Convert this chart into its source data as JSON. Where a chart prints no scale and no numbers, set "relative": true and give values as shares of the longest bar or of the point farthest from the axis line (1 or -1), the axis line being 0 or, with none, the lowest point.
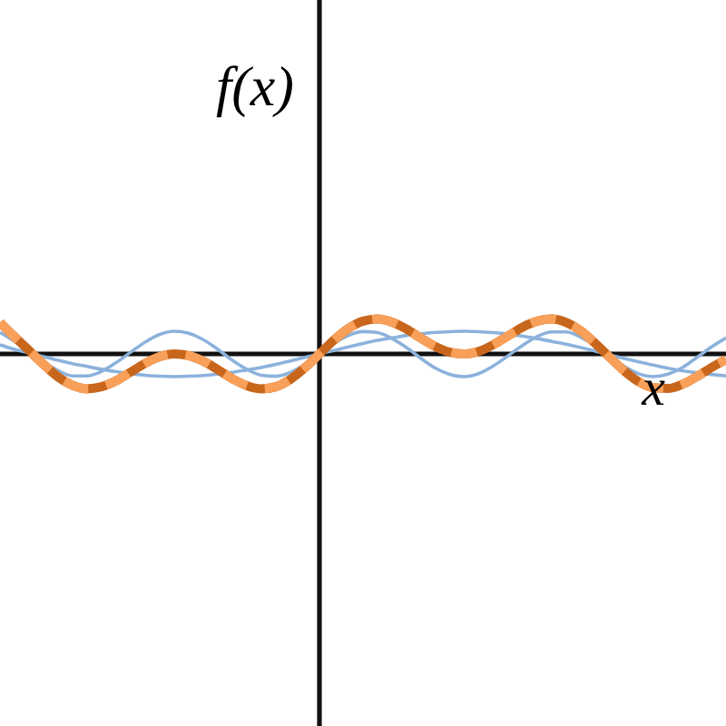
{
  "chart_data": {
    "type": "line",
    "relative": true,
    "xlabel": "x",
    "ylabel": "f(x)",
    "categories": [
      null,
      null,
      null,
      null,
      null,
      null,
      null,
      null,
      null,
      null,
      null,
      null,
      null,
      null,
      null,
      null,
      null,
      null,
      null,
      null,
      null,
      null,
      null,
      null,
      null,
      null,
      null,
      null,
      null,
      null,
      null,
      null,
      null,
      null,
      null,
      null,
      null,
      null,
      null,
      null,
      null,
      null,
      null,
      null,
      null,
      null,
      null,
      null,
      null,
      null,
      null
    ],
    "series": [
      {
        "color": "#8cb2dc",
        "values": [
          0.26,
          0.13,
          0.03,
          -0.08,
          -0.18,
          -0.28,
          -0.36,
          -0.44,
          -0.51,
          -0.57,
          -0.61,
          -0.64,
          -0.65,
          -0.64,
          -0.62,
          -0.58,
          -0.53,
          -0.46,
          -0.39,
          -0.3,
          -0.2,
          -0.1,
          0,
          0.1,
          0.2,
          0.3,
          0.39,
          0.46,
          0.53,
          0.58,
          0.62,
          0.64,
          0.65,
          0.64,
          0.61,
          0.57,
          0.51,
          0.44,
          0.36,
          0.28,
          0.18,
          0.08,
          -0.03,
          -0.13,
          -0.23,
          -0.32,
          -0.41,
          -0.48,
          -0.54,
          -0.59,
          -0.63
        ]
      },
      {
        "color": "#8cb2dc",
        "values": [
          0.62,
          0.36,
          0.08,
          -0.23,
          -0.48,
          -0.63,
          -0.63,
          -0.5,
          -0.25,
          0.05,
          0.34,
          0.56,
          0.65,
          0.59,
          0.41,
          0.13,
          -0.18,
          -0.44,
          -0.61,
          -0.64,
          -0.53,
          -0.3,
          0,
          0.3,
          0.53,
          0.64,
          0.61,
          0.44,
          0.18,
          -0.13,
          -0.41,
          -0.59,
          -0.65,
          -0.56,
          -0.34,
          -0.05,
          0.25,
          0.5,
          0.63,
          0.63,
          0.48,
          0.23,
          -0.08,
          -0.36,
          -0.57,
          -0.65,
          -0.58,
          -0.39,
          -0.1,
          0.2,
          0.46
        ]
      },
      {
        "color": "#c8661c",
        "line_style": "solid",
        "values": [
          0.9,
          0.49,
          0.1,
          -0.3,
          -0.66,
          -0.9,
          -1.0,
          -0.94,
          -0.77,
          -0.52,
          -0.27,
          -0.08,
          0.0,
          -0.05,
          -0.21,
          -0.45,
          -0.71,
          -0.91,
          -1.0,
          -0.94,
          -0.73,
          -0.4,
          0,
          0.4,
          0.73,
          0.94,
          1.0,
          0.91,
          0.71,
          0.45,
          0.21,
          0.05,
          0.0,
          0.08,
          0.27,
          0.52,
          0.77,
          0.94,
          1.0,
          0.9,
          0.66,
          0.3,
          -0.1,
          -0.49,
          -0.8,
          -0.97,
          -0.99,
          -0.87,
          -0.65,
          -0.39,
          -0.16
        ]
      },
      {
        "color": "#f8a05a",
        "line_style": "dashed",
        "values": [
          0.9,
          0.49,
          0.1,
          -0.3,
          -0.66,
          -0.9,
          -1.0,
          -0.94,
          -0.77,
          -0.52,
          -0.27,
          -0.08,
          0.0,
          -0.05,
          -0.21,
          -0.45,
          -0.71,
          -0.91,
          -1.0,
          -0.94,
          -0.73,
          -0.4,
          0,
          0.4,
          0.73,
          0.94,
          1.0,
          0.91,
          0.71,
          0.45,
          0.21,
          0.05,
          0.0,
          0.08,
          0.27,
          0.52,
          0.77,
          0.94,
          1.0,
          0.9,
          0.66,
          0.3,
          -0.1,
          -0.49,
          -0.8,
          -0.97,
          -0.99,
          -0.87,
          -0.65,
          -0.39,
          -0.16
        ]
      }
    ]
  }
}
